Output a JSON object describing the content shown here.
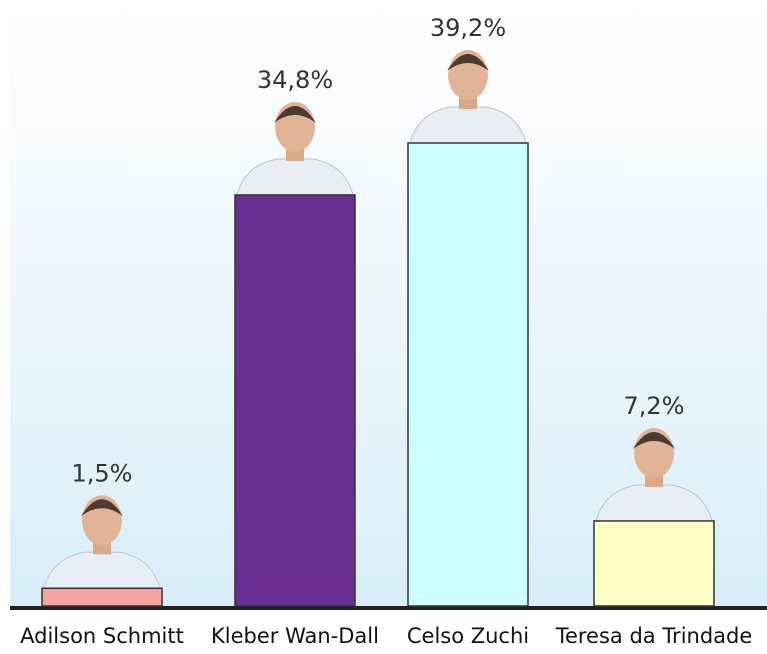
{
  "chart_data": {
    "type": "bar",
    "categories": [
      "Adilson Schmitt",
      "Kleber Wan-Dall",
      "Celso Zuchi",
      "Teresa da Trindade"
    ],
    "values": [
      1.5,
      34.8,
      39.2,
      7.2
    ],
    "value_labels": [
      "1,5%",
      "34,8%",
      "39,2%",
      "7,2%"
    ],
    "colors": [
      "#f7a3a0",
      "#6a2f92",
      "#ccffff",
      "#ffffc6"
    ]
  }
}
